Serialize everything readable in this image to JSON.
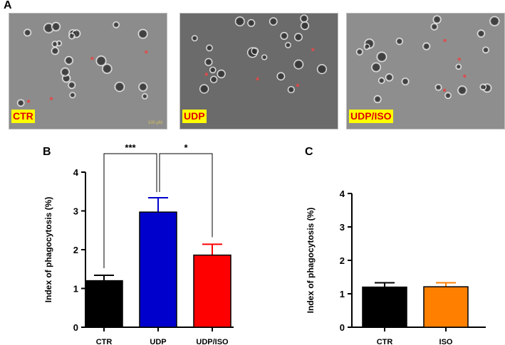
{
  "panels": {
    "A": {
      "letter": "A",
      "images": [
        {
          "label": "CTR",
          "scale_label": "100 µM",
          "bg": "#8c8c8c"
        },
        {
          "label": "UDP",
          "scale_label": "",
          "bg": "#6b6b6b"
        },
        {
          "label": "UDP/ISO",
          "scale_label": "",
          "bg": "#8e8e8e"
        }
      ]
    },
    "B": {
      "letter": "B"
    },
    "C": {
      "letter": "C"
    }
  },
  "chart_data": [
    {
      "type": "bar",
      "title": "",
      "xlabel": "",
      "ylabel": "Index of phagocytosis (%)",
      "ylim": [
        0,
        4
      ],
      "yticks": [
        0,
        1,
        2,
        3,
        4
      ],
      "categories": [
        "CTR",
        "UDP",
        "UDP/ISO"
      ],
      "values": [
        1.2,
        2.97,
        1.86
      ],
      "errors": [
        0.14,
        0.37,
        0.28
      ],
      "colors": [
        "#000000",
        "#0000cc",
        "#ff0000"
      ],
      "significance": [
        {
          "from": "UDP",
          "to": "CTR",
          "label": "***"
        },
        {
          "from": "UDP",
          "to": "UDP/ISO",
          "label": "*"
        }
      ]
    },
    {
      "type": "bar",
      "title": "",
      "xlabel": "",
      "ylabel": "Index of phagocytosis (%)",
      "ylim": [
        0,
        4
      ],
      "yticks": [
        0,
        1,
        2,
        3,
        4
      ],
      "categories": [
        "CTR",
        "ISO"
      ],
      "values": [
        1.2,
        1.21
      ],
      "errors": [
        0.13,
        0.12
      ],
      "colors": [
        "#000000",
        "#ff8000"
      ]
    }
  ]
}
